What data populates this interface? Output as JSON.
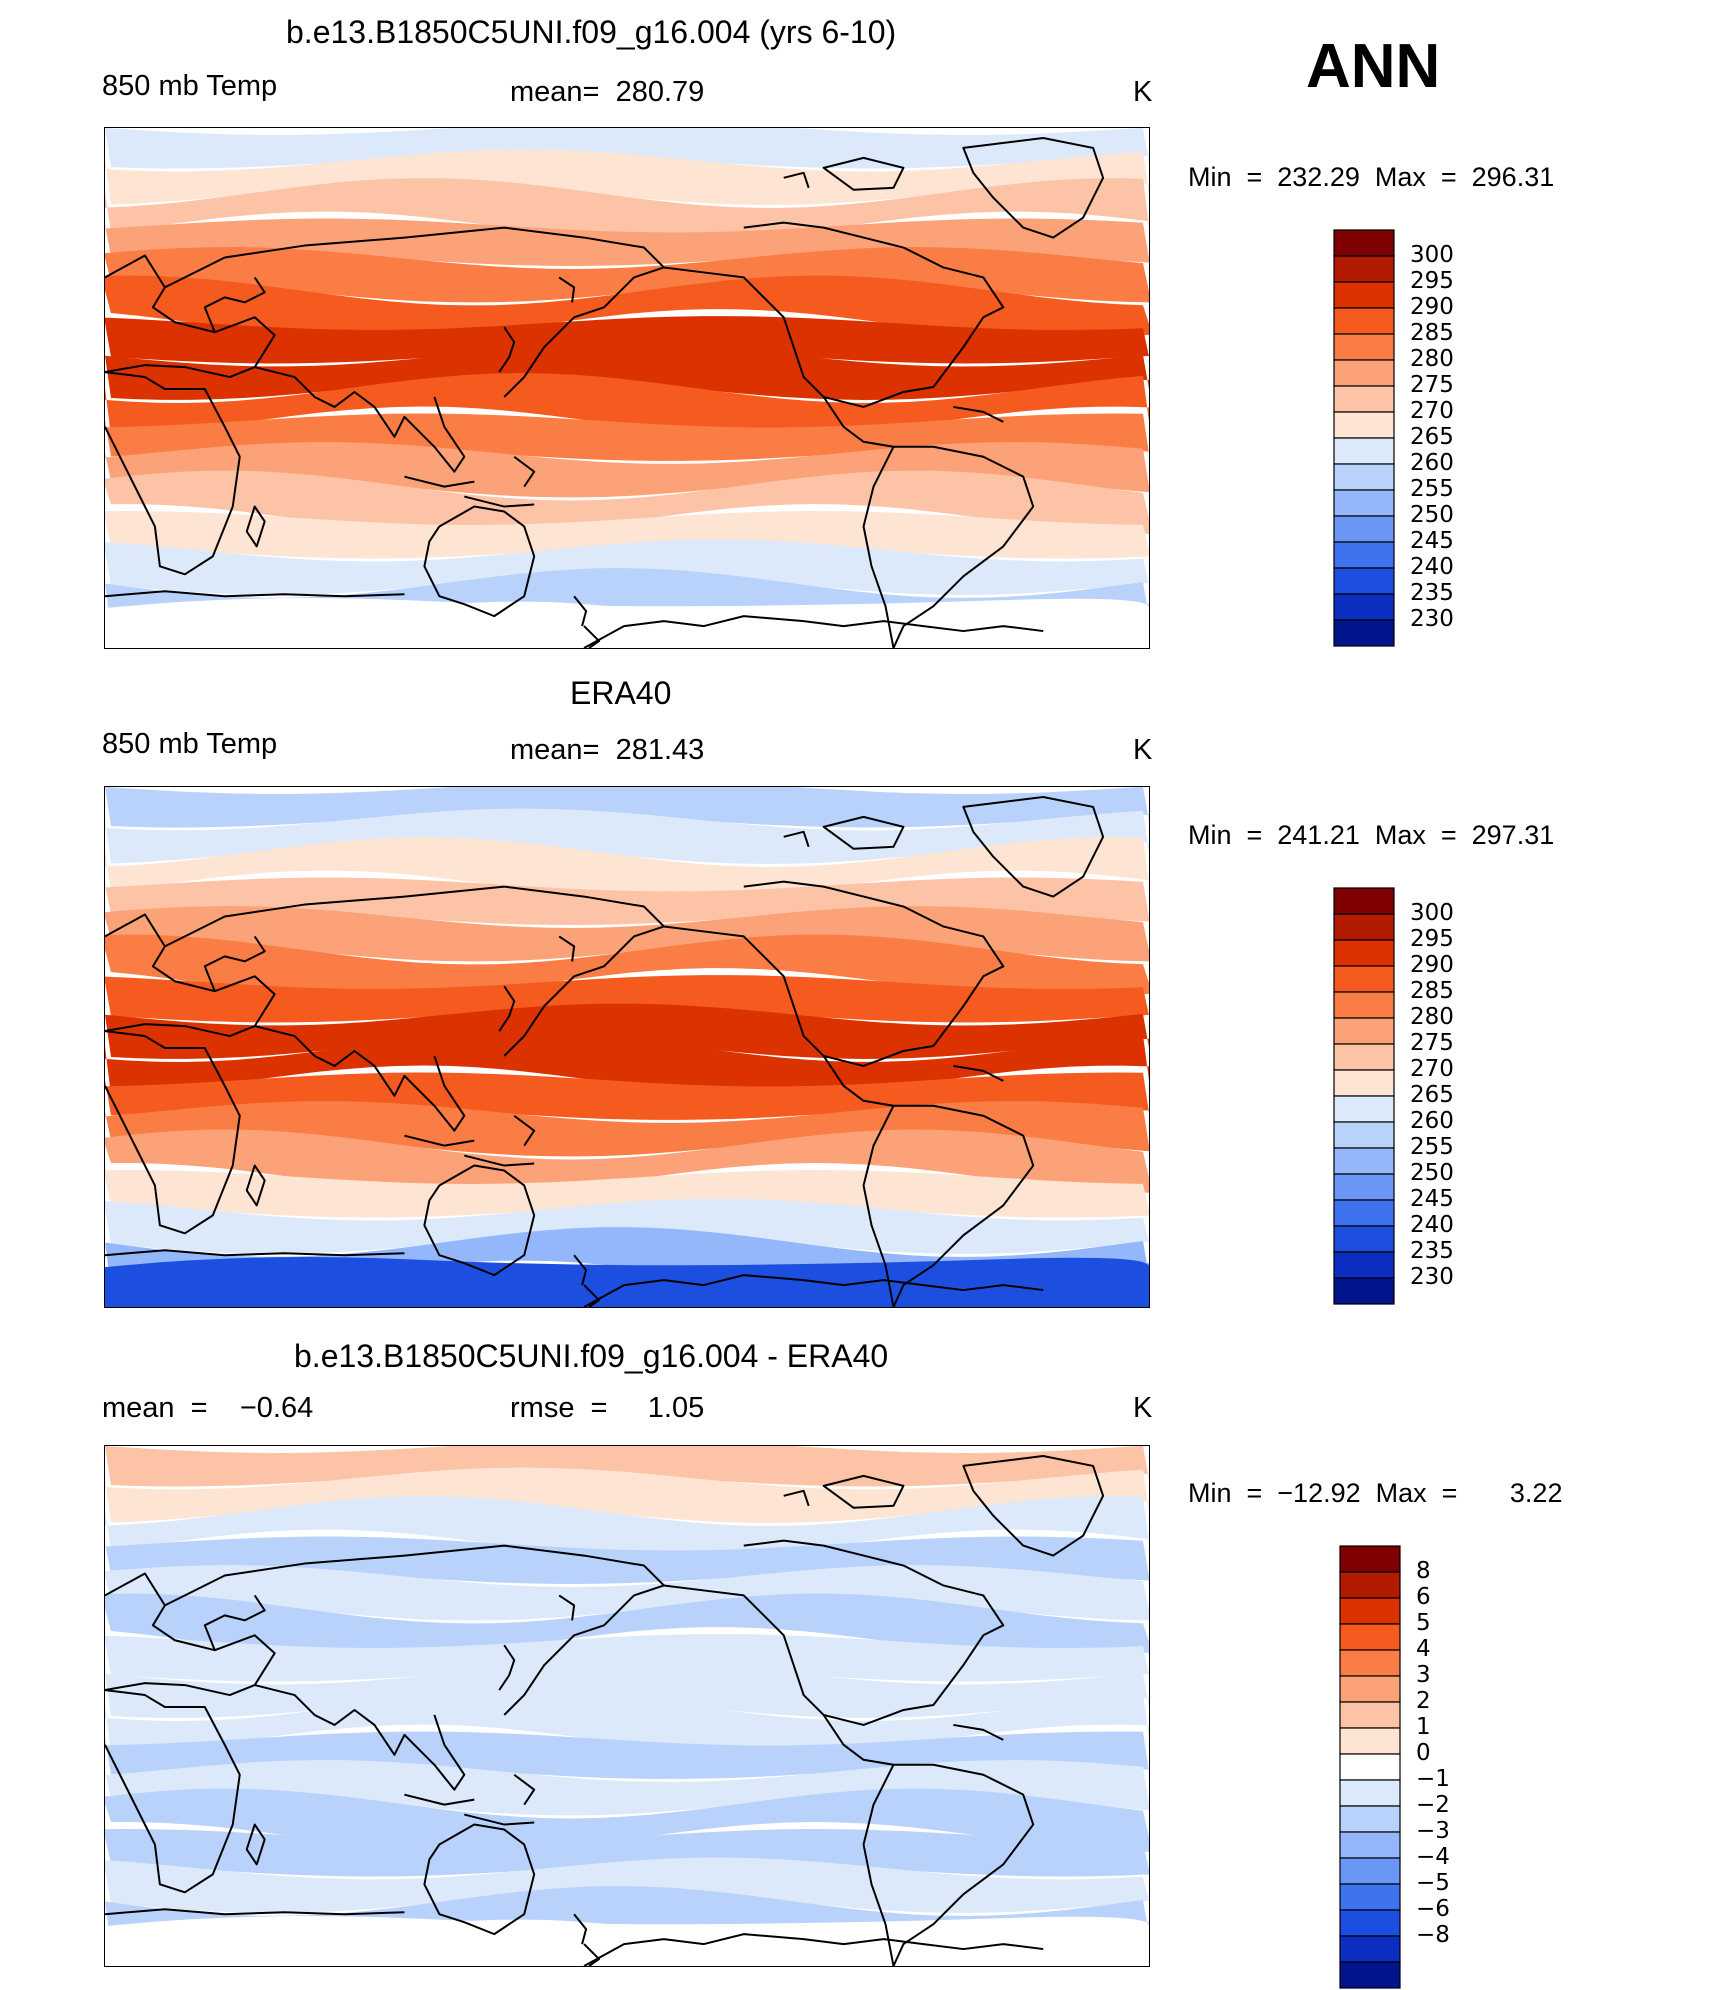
{
  "overall_label": "ANN",
  "coastline_color": "#000000",
  "panels": [
    {
      "title": "b.e13.B1850C5UNI.f09_g16.004 (yrs 6-10)",
      "left_label": "850 mb Temp",
      "center_label": "mean=  280.79",
      "units": "K",
      "min_max": "Min  =  232.29  Max  =  296.31",
      "colorbar": {
        "labels": [
          "300",
          "295",
          "290",
          "285",
          "280",
          "275",
          "270",
          "265",
          "260",
          "255",
          "250",
          "245",
          "240",
          "235",
          "230"
        ],
        "colors": [
          "#7f0000",
          "#b31b00",
          "#dc3200",
          "#f55a1e",
          "#fb7d46",
          "#fca278",
          "#fdc3a6",
          "#fee4d2",
          "#dbe9fb",
          "#b9d2fb",
          "#94b7fb",
          "#6a97f5",
          "#3e72ee",
          "#1c4fe0",
          "#0b2ec0",
          "#00158c"
        ]
      },
      "map": {
        "description_bands": "Zonal 850 mb temperature, model run",
        "band_colors": [
          "#dbe9fb",
          "#fee4d2",
          "#fdc3a6",
          "#fca278",
          "#fb7d46",
          "#f55a1e",
          "#dc3200",
          "#dc3200",
          "#f55a1e",
          "#fb7d46",
          "#fca278",
          "#fdc3a6",
          "#fee4d2",
          "#dbe9fb",
          "#b9d2fb",
          "#94b7fb"
        ],
        "polar_south_color": "#ffffff"
      }
    },
    {
      "title": "ERA40",
      "left_label": "850 mb Temp",
      "center_label": "mean=  281.43",
      "units": "K",
      "min_max": "Min  =  241.21  Max  =  297.31",
      "colorbar": {
        "labels": [
          "300",
          "295",
          "290",
          "285",
          "280",
          "275",
          "270",
          "265",
          "260",
          "255",
          "250",
          "245",
          "240",
          "235",
          "230"
        ],
        "colors": [
          "#7f0000",
          "#b31b00",
          "#dc3200",
          "#f55a1e",
          "#fb7d46",
          "#fca278",
          "#fdc3a6",
          "#fee4d2",
          "#dbe9fb",
          "#b9d2fb",
          "#94b7fb",
          "#6a97f5",
          "#3e72ee",
          "#1c4fe0",
          "#0b2ec0",
          "#00158c"
        ]
      },
      "map": {
        "description_bands": "Zonal 850 mb temperature, reanalysis",
        "band_colors": [
          "#b9d2fb",
          "#dbe9fb",
          "#fee4d2",
          "#fdc3a6",
          "#fca278",
          "#fb7d46",
          "#f55a1e",
          "#dc3200",
          "#dc3200",
          "#f55a1e",
          "#fb7d46",
          "#fca278",
          "#fee4d2",
          "#dbe9fb",
          "#94b7fb",
          "#3e72ee"
        ],
        "polar_south_color": "#1c4fe0"
      }
    },
    {
      "title": "b.e13.B1850C5UNI.f09_g16.004 - ERA40",
      "left_label": "mean  =    −0.64",
      "center_label": "rmse  =     1.05",
      "units": "K",
      "min_max": "Min  =  −12.92  Max  =       3.22",
      "colorbar": {
        "labels": [
          "8",
          "6",
          "5",
          "4",
          "3",
          "2",
          "1",
          "0",
          "−1",
          "−2",
          "−3",
          "−4",
          "−5",
          "−6",
          "−8"
        ],
        "colors": [
          "#7f0000",
          "#b31b00",
          "#dc3200",
          "#f55a1e",
          "#fb7d46",
          "#fca278",
          "#fdc3a6",
          "#fee4d2",
          "#ffffff",
          "#dbe9fb",
          "#b9d2fb",
          "#94b7fb",
          "#6a97f5",
          "#3e72ee",
          "#1c4fe0",
          "#0b2ec0",
          "#00158c"
        ]
      },
      "map": {
        "description_bands": "Model minus reanalysis difference",
        "band_colors": [
          "#fdc3a6",
          "#fee4d2",
          "#dbe9fb",
          "#b9d2fb",
          "#dbe9fb",
          "#b9d2fb",
          "#dbe9fb",
          "#dbe9fb",
          "#dbe9fb",
          "#b9d2fb",
          "#dbe9fb",
          "#b9d2fb",
          "#b9d2fb",
          "#dbe9fb",
          "#b9d2fb",
          "#ffffff"
        ],
        "polar_south_color": "#ffffff"
      }
    }
  ]
}
